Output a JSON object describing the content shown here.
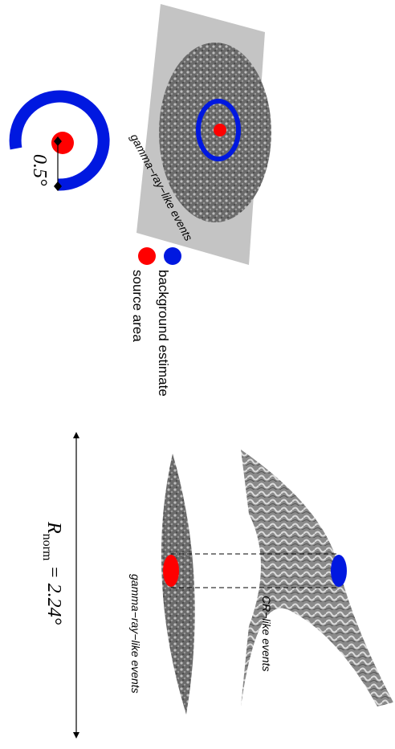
{
  "legend": {
    "background": "background estimate",
    "source": "source area"
  },
  "sky_map": {
    "label": "gamma−ray−like events"
  },
  "geometry": {
    "offset": "0.5°",
    "r_symbol": "R",
    "r_subscript": "norm",
    "r_value": "= 2.24°"
  },
  "histogram": {
    "cr_label": "CR−like events",
    "gamma_label": "gamma−ray−like events"
  }
}
